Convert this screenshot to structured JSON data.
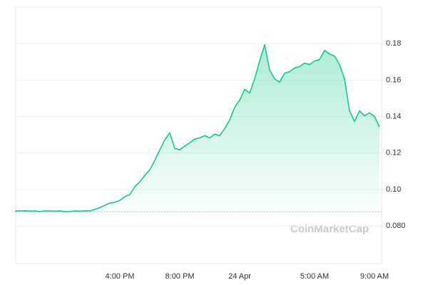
{
  "chart_data": {
    "type": "line",
    "color": "#16c784",
    "baseline": 0.0878,
    "watermark": "CoinMarketCap",
    "categories": [
      null,
      null,
      null,
      null,
      null,
      null,
      null,
      null,
      null,
      null,
      null,
      null,
      null,
      null,
      null,
      null,
      null,
      null,
      null,
      null,
      null,
      "4:00 PM",
      null,
      null,
      null,
      null,
      null,
      null,
      null,
      null,
      null,
      null,
      null,
      "8:00 PM",
      null,
      null,
      null,
      null,
      null,
      null,
      null,
      null,
      null,
      null,
      null,
      "24 Apr",
      null,
      null,
      null,
      null,
      null,
      null,
      null,
      null,
      null,
      null,
      null,
      null,
      null,
      null,
      "5:00 AM",
      null,
      null,
      null,
      null,
      null,
      null,
      null,
      null,
      null,
      null,
      null,
      "9:00 AM",
      null
    ],
    "values": [
      0.0882,
      0.0882,
      0.0883,
      0.0881,
      0.0882,
      0.0879,
      0.0882,
      0.0882,
      0.0881,
      0.0882,
      0.0878,
      0.0879,
      0.0882,
      0.0881,
      0.0882,
      0.0883,
      0.089,
      0.0901,
      0.0913,
      0.0925,
      0.0929,
      0.094,
      0.096,
      0.0972,
      0.1015,
      0.1042,
      0.1077,
      0.1108,
      0.1159,
      0.1217,
      0.1272,
      0.131,
      0.1225,
      0.1217,
      0.1237,
      0.1256,
      0.1276,
      0.1283,
      0.1295,
      0.1283,
      0.1303,
      0.1295,
      0.1334,
      0.1381,
      0.1451,
      0.149,
      0.1549,
      0.1529,
      0.1607,
      0.1705,
      0.1794,
      0.1654,
      0.1607,
      0.1588,
      0.1638,
      0.1646,
      0.1666,
      0.1674,
      0.1693,
      0.1685,
      0.1705,
      0.1712,
      0.1763,
      0.1743,
      0.1732,
      0.1685,
      0.1607,
      0.1431,
      0.1373,
      0.1431,
      0.1404,
      0.142,
      0.14,
      0.1342
    ],
    "ylim": [
      0.0593,
      0.2
    ],
    "yticks": [
      {
        "value": 0.08,
        "label": "0.080"
      },
      {
        "value": 0.1,
        "label": "0.10"
      },
      0.12,
      0.14,
      0.16,
      0.18
    ],
    "grid": true
  }
}
